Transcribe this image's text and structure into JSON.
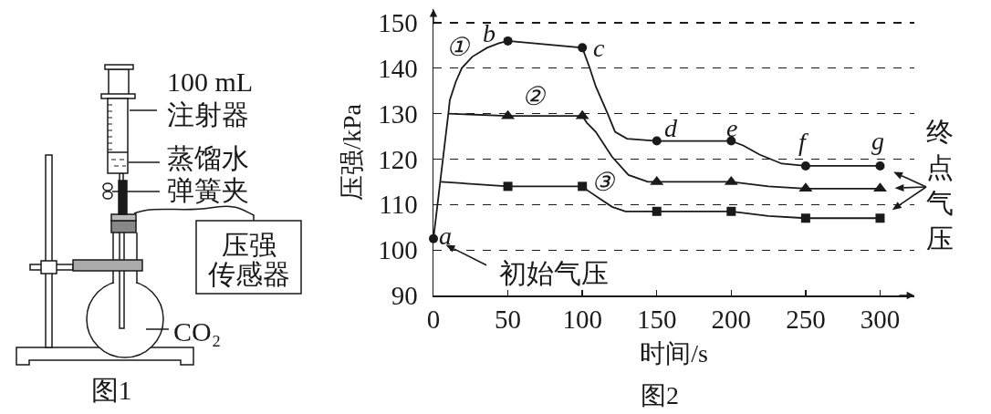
{
  "chart_data": [
    {
      "type": "other",
      "title": "图1",
      "annotations": [
        "100 mL",
        "注射器",
        "蒸馏水",
        "弹簧夹",
        "压强传感器",
        "CO₂"
      ]
    },
    {
      "type": "line",
      "title": "图2",
      "xlabel": "时间/s",
      "ylabel": "压强/kPa",
      "xlim": [
        0,
        323
      ],
      "ylim": [
        90,
        153
      ],
      "xticks": [
        0,
        50,
        100,
        150,
        200,
        250,
        300
      ],
      "yticks": [
        90,
        100,
        110,
        120,
        130,
        140,
        150
      ],
      "grid": "y",
      "line_style": "solid",
      "series": [
        {
          "type": "line",
          "color": "#1a1a1a",
          "x": [
            0,
            10,
            11,
            15,
            19,
            26,
            36,
            44,
            50,
            100,
            105,
            109,
            117,
            122,
            130,
            150,
            200,
            208,
            219,
            234,
            250,
            300
          ],
          "values": [
            102.5,
            130,
            133,
            137,
            140,
            142.5,
            144.5,
            145.5,
            146,
            144.5,
            140,
            136,
            130,
            126,
            124.5,
            124,
            124,
            123,
            121,
            119,
            118.5,
            118.5
          ]
        },
        {
          "type": "line",
          "color": "#1a1a1a",
          "x": [
            10,
            50,
            100,
            103,
            109,
            120,
            131,
            144,
            150,
            200,
            225,
            250,
            300
          ],
          "values": [
            130,
            129.5,
            129.5,
            128,
            126,
            120.5,
            116.5,
            115,
            115,
            115,
            114,
            113.5,
            113.5
          ]
        },
        {
          "type": "line",
          "color": "#1a1a1a",
          "x": [
            5,
            50,
            100,
            104,
            113,
            120,
            129,
            150,
            200,
            225,
            250,
            300
          ],
          "values": [
            115,
            114,
            114,
            113,
            111,
            109.5,
            108.5,
            108.5,
            108.5,
            107.5,
            107,
            107
          ]
        },
        {
          "type": "scatter",
          "marker": "circle",
          "color": "#1a1a1a",
          "x": [
            0,
            50,
            100,
            150,
            200,
            250,
            300
          ],
          "values": [
            102.5,
            146,
            144.5,
            124,
            124,
            118.5,
            118.5
          ]
        },
        {
          "type": "scatter",
          "marker": "triangle",
          "color": "#1a1a1a",
          "x": [
            50,
            100,
            150,
            200,
            250,
            300
          ],
          "values": [
            129.5,
            129.5,
            115,
            115,
            113.5,
            113.5
          ]
        },
        {
          "type": "scatter",
          "marker": "square",
          "color": "#1a1a1a",
          "x": [
            50,
            100,
            150,
            200,
            250,
            300
          ],
          "values": [
            114,
            114,
            108.5,
            108.5,
            107,
            107
          ]
        }
      ],
      "annotations": [
        {
          "text": "①",
          "x": 19,
          "y": 140
        },
        {
          "text": "②",
          "x": 68,
          "y": 129.5
        },
        {
          "text": "③",
          "x": 100,
          "y": 114
        },
        {
          "text": "a",
          "x": 0,
          "y": 102.5
        },
        {
          "text": "b",
          "x": 50,
          "y": 146
        },
        {
          "text": "c",
          "x": 100,
          "y": 144.5
        },
        {
          "text": "d",
          "x": 150,
          "y": 124
        },
        {
          "text": "e",
          "x": 200,
          "y": 124
        },
        {
          "text": "f",
          "x": 250,
          "y": 118.5
        },
        {
          "text": "g",
          "x": 300,
          "y": 118.5
        },
        {
          "text": "初始气压",
          "x": 0,
          "y": 102.5
        },
        {
          "text": "终点气压",
          "x": 300,
          "y": 113.5
        }
      ]
    }
  ]
}
